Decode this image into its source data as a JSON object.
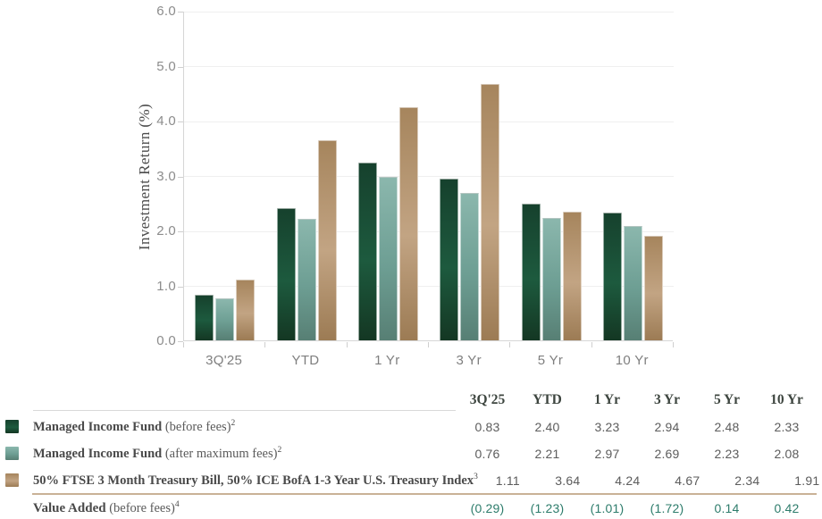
{
  "chart_data": {
    "type": "bar",
    "title": "",
    "ylabel": "Investment Return (%)",
    "xlabel": "",
    "categories": [
      "3Q'25",
      "YTD",
      "1 Yr",
      "3 Yr",
      "5 Yr",
      "10 Yr"
    ],
    "series": [
      {
        "key": "before-fees",
        "name": "Managed Income Fund (before fees)",
        "values": [
          0.83,
          2.4,
          3.23,
          2.94,
          2.48,
          2.33
        ],
        "gradient": [
          "#16412d",
          "#1d5a3e",
          "#143723"
        ]
      },
      {
        "key": "after-max-fees",
        "name": "Managed Income Fund (after maximum fees)",
        "values": [
          0.76,
          2.21,
          2.97,
          2.69,
          2.23,
          2.08
        ],
        "gradient": [
          "#8bb7ad",
          "#6d9e93",
          "#577f74"
        ]
      },
      {
        "key": "benchmark-index",
        "name": "50% FTSE 3 Month Treasury Bill, 50% ICE BofA 1-3 Year U.S. Treasury Index",
        "values": [
          1.11,
          3.64,
          4.24,
          4.67,
          2.34,
          1.91
        ],
        "gradient": [
          "#a6855d",
          "#c2a483",
          "#9c7b54"
        ]
      }
    ],
    "ylim": [
      0,
      6
    ],
    "ytick_labels": [
      "0.0",
      "1.0",
      "2.0",
      "3.0",
      "4.0",
      "5.0",
      "6.0"
    ],
    "grid": true,
    "legend_position": "table-below"
  },
  "table": {
    "headers": [
      "3Q'25",
      "YTD",
      "1 Yr",
      "3 Yr",
      "5 Yr",
      "10 Yr"
    ],
    "rows": [
      {
        "swatch": 0,
        "label": "Managed Income Fund",
        "note": " (before fees)",
        "sup": "2",
        "values": [
          "0.83",
          "2.40",
          "3.23",
          "2.94",
          "2.48",
          "2.33"
        ],
        "style": "normal"
      },
      {
        "swatch": 1,
        "label": "Managed Income Fund",
        "note": " (after maximum fees)",
        "sup": "2",
        "values": [
          "0.76",
          "2.21",
          "2.97",
          "2.69",
          "2.23",
          "2.08"
        ],
        "style": "normal"
      },
      {
        "swatch": 2,
        "label": "50% FTSE 3 Month Treasury Bill, 50% ICE BofA 1-3 Year U.S. Treasury Index",
        "note": "",
        "sup": "3",
        "values": [
          "1.11",
          "3.64",
          "4.24",
          "4.67",
          "2.34",
          "1.91"
        ],
        "style": "normal"
      },
      {
        "swatch": null,
        "label": "Value Added",
        "note": " (before fees)",
        "sup": "4",
        "values": [
          "(0.29)",
          "(1.23)",
          "(1.01)",
          "(1.72)",
          "0.14",
          "0.42"
        ],
        "style": "accent"
      }
    ]
  },
  "colors": {
    "accent_teal": "#2d7c6b",
    "axis_line": "#d6d6d6",
    "gridline": "#efefef",
    "tick": "#cfcfcf",
    "tan_rule": "#c9b297",
    "gray_rule": "#d9d9d9"
  }
}
